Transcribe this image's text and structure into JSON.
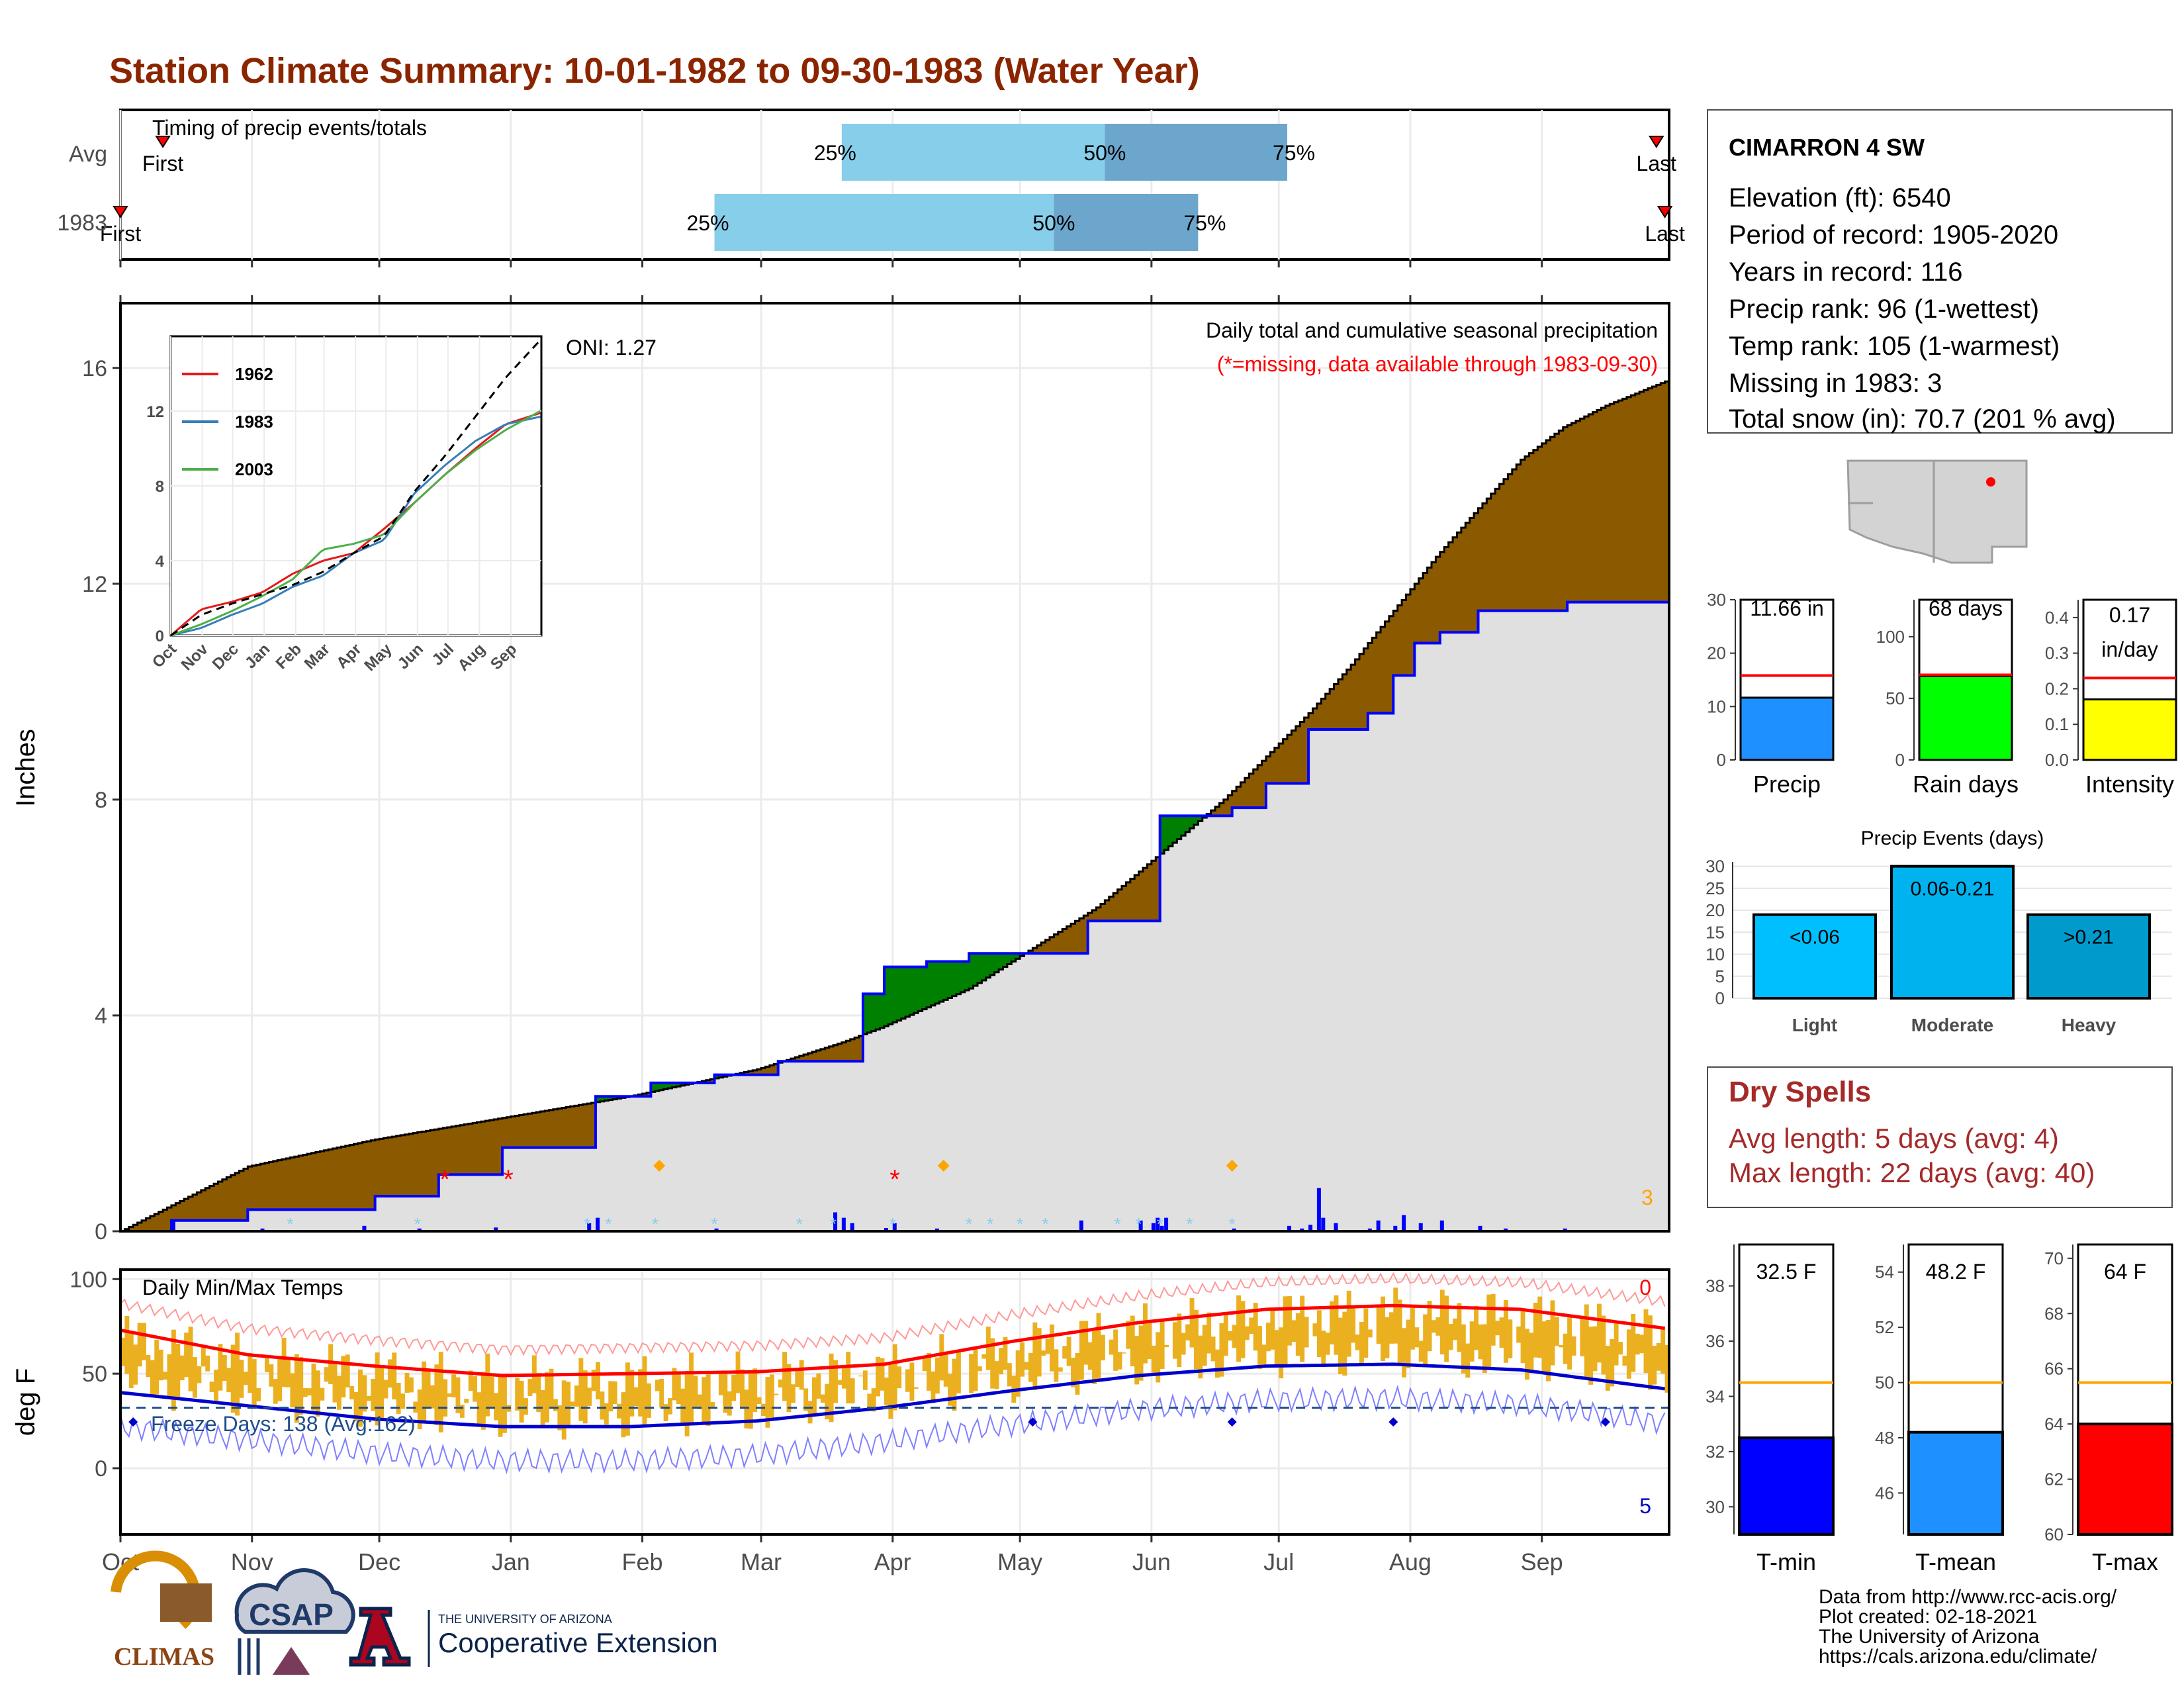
{
  "page_title": "Station Climate Summary: 10-01-1982 to 09-30-1983 (Water Year)",
  "colors": {
    "title": "#8B2500",
    "surplus": "#008000",
    "deficit": "#8B5A00",
    "avg_fill": "#E0E0E0",
    "blue_line": "#0000FF",
    "bar_light": "#87CEEB",
    "bar_dark": "#6CA6CD",
    "temp_bar": "#EBB020",
    "tmax_avg": "#FF0000",
    "tmin_avg": "#0000CD",
    "dry_spell_text": "#A52A2A"
  },
  "month_labels": [
    "Oct",
    "Nov",
    "Dec",
    "Jan",
    "Feb",
    "Mar",
    "Apr",
    "May",
    "Jun",
    "Jul",
    "Aug",
    "Sep"
  ],
  "timing": {
    "title": "Timing of precip events/totals",
    "rows": [
      {
        "label": "Avg",
        "p25_day": 170,
        "p50_day": 232,
        "p75_day": 275,
        "first_day": 10,
        "last_day": 362,
        "first_label": "First",
        "last_label": "Last",
        "pct25": "25%",
        "pct50": "50%",
        "pct75": "75%"
      },
      {
        "label": "1983",
        "p25_day": 140,
        "p50_day": 220,
        "p75_day": 254,
        "first_day": 0,
        "last_day": 364,
        "first_label": "First",
        "last_label": "Last",
        "pct25": "25%",
        "pct50": "50%",
        "pct75": "75%"
      }
    ]
  },
  "precip_panel": {
    "ylabel": "Inches",
    "title": "Daily total and cumulative seasonal precipitation",
    "subtitle": "(*=missing, data available through 1983-09-30)",
    "oni": "ONI: 1.27",
    "missing_count": "3",
    "y_ticks": [
      "0",
      "4",
      "8",
      "12",
      "16"
    ]
  },
  "inset": {
    "legend": [
      "1962",
      "1983",
      "2003"
    ],
    "legend_colors": [
      "#E41A1C",
      "#377EB8",
      "#4DAF4A"
    ],
    "y_ticks": [
      "0",
      "4",
      "8",
      "12"
    ],
    "x_ticks": [
      "Oct",
      "Nov",
      "Dec",
      "Jan",
      "Feb",
      "Mar",
      "Apr",
      "May",
      "Jun",
      "Jul",
      "Aug",
      "Sep"
    ]
  },
  "temp_panel": {
    "ylabel": "deg F",
    "title": "Daily Min/Max Temps",
    "freeze_text": "Freeze Days: 138 (Avg:162)",
    "hot_count": "0",
    "cold_count": "5",
    "y_ticks": [
      "0",
      "50",
      "100"
    ]
  },
  "station": {
    "name": "CIMARRON 4 SW",
    "lines": [
      "Elevation (ft): 6540",
      "Period of record: 1905-2020",
      "Years in record: 116",
      "Precip rank: 96 (1-wettest)",
      "Temp rank: 105 (1-warmest)",
      "Missing in 1983: 3",
      "Total snow (in): 70.7 (201 % avg)"
    ]
  },
  "mini_bars": [
    {
      "label": "Precip",
      "value_text": "11.66 in",
      "value": 11.66,
      "avg": 15.8,
      "ymax": 30,
      "ticks": [
        "0",
        "10",
        "20",
        "30"
      ],
      "tick_vals": [
        0,
        10,
        20,
        30
      ],
      "color": "#1E90FF"
    },
    {
      "label": "Rain days",
      "value_text": "68 days",
      "value": 68,
      "avg": 69,
      "ymax": 130,
      "ticks": [
        "0",
        "50",
        "100"
      ],
      "tick_vals": [
        0,
        50,
        100
      ],
      "color": "#00FF00"
    },
    {
      "label": "Intensity",
      "value_text_1": "0.17",
      "value_text_2": "in/day",
      "value": 0.17,
      "avg": 0.23,
      "ymax": 0.45,
      "ticks": [
        "0.0",
        "0.1",
        "0.2",
        "0.3",
        "0.4"
      ],
      "tick_vals": [
        0,
        0.1,
        0.2,
        0.3,
        0.4
      ],
      "color": "#FFFF00"
    }
  ],
  "precip_events": {
    "title": "Precip Events (days)",
    "bars": [
      {
        "label": "Light",
        "value_text": "<0.06",
        "value": 19,
        "color": "#00BFFF"
      },
      {
        "label": "Moderate",
        "value_text": "0.06-0.21",
        "value": 30,
        "color": "#00B2EE"
      },
      {
        "label": "Heavy",
        "value_text": ">0.21",
        "value": 19,
        "color": "#009ACD"
      }
    ],
    "ticks": [
      "0",
      "5",
      "10",
      "15",
      "20",
      "25",
      "30"
    ]
  },
  "dry_spells": {
    "title": "Dry Spells",
    "avg_line": "Avg length: 5 days (avg: 4)",
    "max_line": "Max length: 22 days (avg: 40)"
  },
  "temp_bars": [
    {
      "label": "T-min",
      "value_text": "32.5 F",
      "value": 32.5,
      "avg": 34.5,
      "ymin": 29,
      "ymax": 39.5,
      "ticks": [
        "30",
        "32",
        "34",
        "36",
        "38"
      ],
      "tick_vals": [
        30,
        32,
        34,
        36,
        38
      ],
      "color": "#0000FF"
    },
    {
      "label": "T-mean",
      "value_text": "48.2 F",
      "value": 48.2,
      "avg": 50.0,
      "ymin": 44.5,
      "ymax": 55,
      "ticks": [
        "46",
        "48",
        "50",
        "52",
        "54"
      ],
      "tick_vals": [
        46,
        48,
        50,
        52,
        54
      ],
      "color": "#1E90FF"
    },
    {
      "label": "T-max",
      "value_text": "64 F",
      "value": 64,
      "avg": 65.5,
      "ymin": 60,
      "ymax": 70.5,
      "ticks": [
        "60",
        "62",
        "64",
        "66",
        "68",
        "70"
      ],
      "tick_vals": [
        60,
        62,
        64,
        66,
        68,
        70
      ],
      "color": "#FF0000"
    }
  ],
  "footer": {
    "lines": [
      "Data from http://www.rcc-acis.org/",
      "Plot created: 02-18-2021",
      "The University of Arizona",
      "https://cals.arizona.edu/climate/"
    ],
    "climas": "CLIMAS",
    "csap": "CSAP",
    "ua_small": "THE UNIVERSITY OF ARIZONA",
    "ua_big": "Cooperative Extension"
  },
  "chart_data": [
    {
      "type": "line",
      "title": "Daily total and cumulative seasonal precipitation",
      "ylabel": "Inches",
      "ylim": [
        0,
        17.2
      ],
      "x_unit": "day of water year",
      "series": [
        {
          "name": "1983",
          "x": [
            0,
            12,
            30,
            60,
            75,
            90,
            112,
            125,
            140,
            155,
            175,
            180,
            190,
            200,
            228,
            245,
            262,
            270,
            280,
            294,
            300,
            305,
            311,
            320,
            341,
            364
          ],
          "values": [
            0,
            0.2,
            0.4,
            0.65,
            1.05,
            1.55,
            2.5,
            2.75,
            2.9,
            3.15,
            4.4,
            4.9,
            5.0,
            5.15,
            5.75,
            7.7,
            7.85,
            8.3,
            9.3,
            9.6,
            10.3,
            10.9,
            11.1,
            11.5,
            11.66,
            11.66
          ]
        },
        {
          "x": [
            0,
            30,
            60,
            90,
            120,
            150,
            170,
            180,
            200,
            210,
            230,
            245,
            260,
            270,
            280,
            290,
            300,
            310,
            320,
            330,
            340,
            350,
            364
          ],
          "values": [
            0,
            1.2,
            1.7,
            2.1,
            2.5,
            3.0,
            3.5,
            3.8,
            4.5,
            5.0,
            6.0,
            7.0,
            8.0,
            8.8,
            9.6,
            10.5,
            11.5,
            12.5,
            13.4,
            14.3,
            14.9,
            15.3,
            15.75
          ]
        }
      ]
    },
    {
      "type": "bar",
      "title": "Daily precipitation",
      "x_unit": "day of water year",
      "x": [
        12,
        33,
        57,
        70,
        88,
        110,
        112,
        140,
        168,
        170,
        172,
        180,
        182,
        192,
        226,
        240,
        243,
        244,
        245,
        246,
        262,
        275,
        278,
        280,
        282,
        283,
        286,
        294,
        296,
        300,
        302,
        306,
        311,
        320,
        326,
        340
      ],
      "values": [
        0.2,
        0.05,
        0.1,
        0.05,
        0.07,
        0.15,
        0.25,
        0.05,
        0.35,
        0.25,
        0.15,
        0.06,
        0.15,
        0.05,
        0.2,
        0.2,
        0.15,
        0.25,
        0.1,
        0.25,
        0.05,
        0.1,
        0.05,
        0.12,
        0.8,
        0.25,
        0.15,
        0.05,
        0.2,
        0.1,
        0.3,
        0.15,
        0.2,
        0.1,
        0.05,
        0.05
      ]
    },
    {
      "type": "area",
      "title": "Daily Min/Max Temps",
      "ylabel": "deg F",
      "ylim": [
        -35,
        105
      ],
      "series": [
        {
          "x": [
            0,
            30,
            60,
            90,
            120,
            150,
            180,
            210,
            240,
            270,
            300,
            330,
            364
          ],
          "values": [
            73,
            60,
            54,
            49,
            50,
            51,
            55,
            67,
            77,
            84,
            86,
            84,
            74
          ]
        },
        {
          "x": [
            0,
            30,
            60,
            90,
            120,
            150,
            180,
            210,
            240,
            270,
            300,
            330,
            364
          ],
          "values": [
            40,
            33,
            26,
            22,
            22,
            25,
            32,
            41,
            49,
            54,
            55,
            52,
            42
          ]
        }
      ],
      "freeze_line": 32
    },
    {
      "type": "line",
      "title": "Inset cumulative precipitation",
      "ylim": [
        0,
        16
      ],
      "series": [
        {
          "name": "1962",
          "x": [
            0,
            30,
            60,
            90,
            120,
            150,
            180,
            210,
            240,
            270,
            300,
            330,
            364
          ],
          "values": [
            0,
            1.4,
            1.8,
            2.3,
            3.3,
            4.0,
            4.4,
            5.7,
            7.1,
            8.6,
            10.0,
            11.3,
            11.9
          ]
        },
        {
          "name": "1983",
          "x": [
            0,
            30,
            60,
            90,
            120,
            150,
            180,
            210,
            240,
            270,
            300,
            330,
            364
          ],
          "values": [
            0,
            0.4,
            1.1,
            1.7,
            2.6,
            3.2,
            4.4,
            5.1,
            7.6,
            9.1,
            10.4,
            11.3,
            11.7
          ]
        },
        {
          "name": "2003",
          "x": [
            0,
            30,
            60,
            90,
            120,
            150,
            180,
            210,
            240,
            270,
            300,
            330,
            364
          ],
          "values": [
            0,
            0.6,
            1.3,
            2.1,
            3.0,
            4.6,
            4.9,
            5.4,
            7.1,
            8.6,
            9.9,
            11.0,
            12.0
          ]
        },
        {
          "x": [
            0,
            30,
            60,
            90,
            120,
            150,
            180,
            210,
            240,
            270,
            300,
            330,
            364
          ],
          "values": [
            0,
            1.1,
            1.7,
            2.2,
            2.7,
            3.4,
            4.4,
            5.3,
            7.7,
            9.6,
            11.7,
            13.8,
            15.8
          ]
        }
      ]
    },
    {
      "type": "bar",
      "title": "Precip Events (days)",
      "categories": [
        "Light",
        "Moderate",
        "Heavy"
      ],
      "values": [
        19,
        30,
        19
      ]
    },
    {
      "type": "bar",
      "categories": [
        "T-min",
        "T-mean",
        "T-max"
      ],
      "values": [
        32.5,
        48.2,
        64
      ]
    }
  ]
}
